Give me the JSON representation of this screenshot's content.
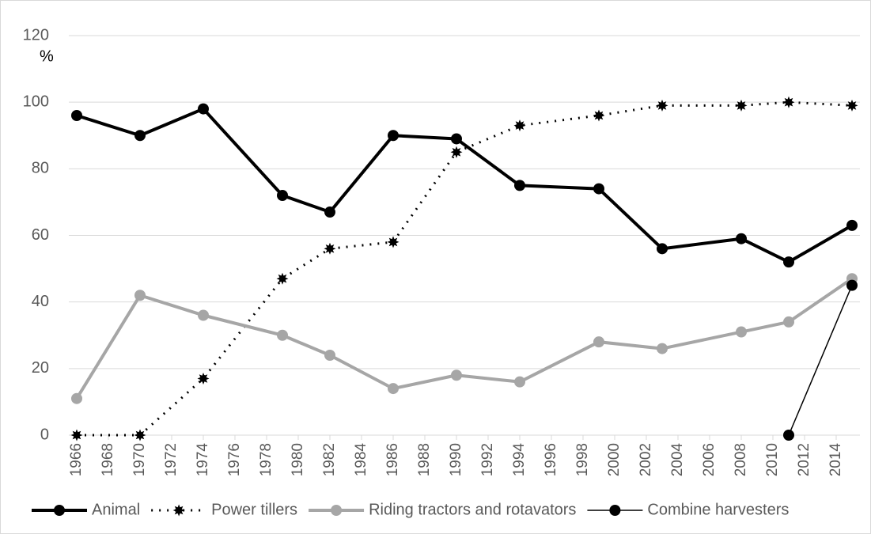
{
  "chart_data": {
    "type": "line",
    "y_unit_label": "%",
    "x": [
      1966,
      1970,
      1974,
      1979,
      1982,
      1986,
      1990,
      1994,
      1999,
      2003,
      2008,
      2011,
      2015
    ],
    "series": [
      {
        "name": "Animal",
        "color": "#000000",
        "values": [
          96,
          90,
          98,
          72,
          67,
          90,
          89,
          75,
          74,
          56,
          59,
          52,
          63
        ]
      },
      {
        "name": "Power tillers",
        "color": "#000000",
        "values": [
          0,
          0,
          17,
          47,
          56,
          58,
          85,
          93,
          96,
          99,
          99,
          100,
          99
        ]
      },
      {
        "name": "Riding tractors and rotavators",
        "color": "#a6a6a6",
        "values": [
          11,
          42,
          36,
          30,
          24,
          14,
          18,
          16,
          28,
          26,
          31,
          34,
          47
        ]
      },
      {
        "name": "Combine harvesters",
        "color": "#000000",
        "values": [
          null,
          null,
          null,
          null,
          null,
          null,
          null,
          null,
          null,
          null,
          null,
          0,
          45
        ]
      }
    ],
    "xlim": [
      1965.5,
      2015.5
    ],
    "xticks": [
      1966,
      1968,
      1970,
      1972,
      1974,
      1976,
      1978,
      1980,
      1982,
      1984,
      1986,
      1988,
      1990,
      1992,
      1994,
      1996,
      1998,
      2000,
      2002,
      2004,
      2006,
      2008,
      2010,
      2012,
      2014
    ],
    "ylim": [
      0,
      120
    ],
    "yticks": [
      0,
      20,
      40,
      60,
      80,
      100,
      120
    ],
    "grid": true,
    "legend": "bottom"
  }
}
